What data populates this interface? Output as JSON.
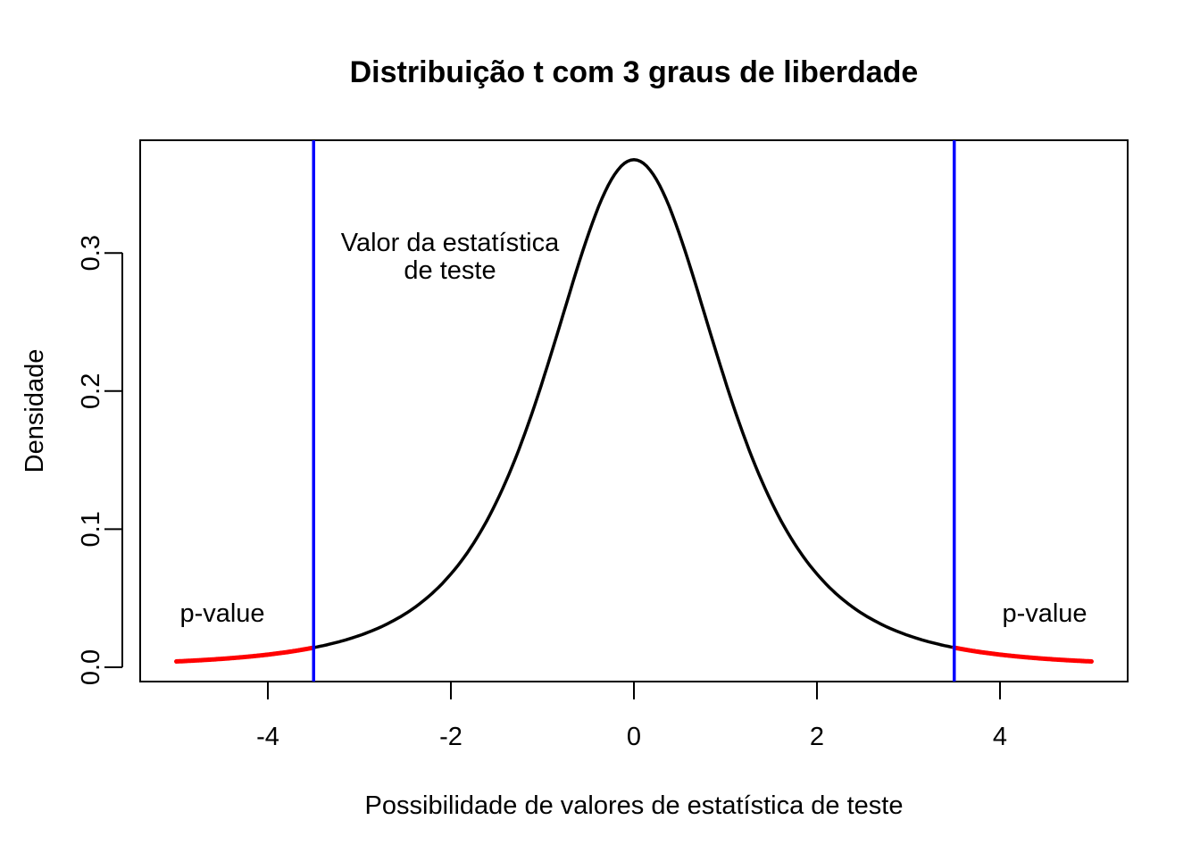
{
  "chart_data": {
    "type": "line",
    "title": "Distribuição t com 3 graus de liberdade",
    "xlabel": "Possibilidade de valores de estatística de teste",
    "ylabel": "Densidade",
    "df": 3,
    "xlim": [
      -5.4,
      5.4
    ],
    "ylim": [
      -0.01,
      0.38
    ],
    "x_ticks": [
      "-4",
      "-2",
      "0",
      "2",
      "4"
    ],
    "x_tick_values": [
      -4,
      -2,
      0,
      2,
      4
    ],
    "y_ticks": [
      "0.0",
      "0.1",
      "0.2",
      "0.3"
    ],
    "y_tick_values": [
      0,
      0.1,
      0.2,
      0.3
    ],
    "grid": false,
    "series": [
      {
        "x": [
          -5,
          -4.5,
          -4,
          -3.5,
          -3,
          -2.5,
          -2,
          -1.5,
          -1,
          -0.5,
          0,
          0.5,
          1,
          1.5,
          2,
          2.5,
          3,
          3.5,
          4,
          4.5,
          5
        ],
        "y": [
          0.0042,
          0.0061,
          0.0092,
          0.0142,
          0.023,
          0.0387,
          0.0675,
          0.12,
          0.2067,
          0.3132,
          0.3676,
          0.3132,
          0.2067,
          0.12,
          0.0675,
          0.0387,
          0.023,
          0.0142,
          0.0092,
          0.0061,
          0.0042
        ],
        "color_center": "#000000",
        "color_tails": "#ff0000",
        "tail_cutoff": 3.5
      }
    ],
    "vlines": {
      "x": [
        -3.5,
        3.5
      ],
      "color": "#0000ff"
    },
    "annotations": {
      "statistic_line1": "Valor da estatística",
      "statistic_line2": "de teste",
      "pvalue_left": "p-value",
      "pvalue_right": "p-value"
    }
  }
}
